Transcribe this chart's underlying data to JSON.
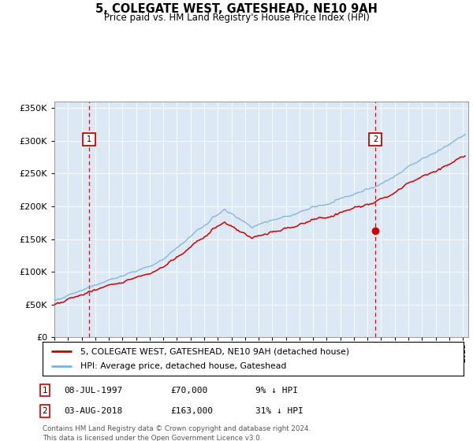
{
  "title": "5, COLEGATE WEST, GATESHEAD, NE10 9AH",
  "subtitle": "Price paid vs. HM Land Registry's House Price Index (HPI)",
  "bg_color": "#dce9f5",
  "line_color_hpi": "#7ab3d9",
  "line_color_price": "#cc0000",
  "legend_line1": "5, COLEGATE WEST, GATESHEAD, NE10 9AH (detached house)",
  "legend_line2": "HPI: Average price, detached house, Gateshead",
  "footer": "Contains HM Land Registry data © Crown copyright and database right 2024.\nThis data is licensed under the Open Government Licence v3.0.",
  "ylim": [
    0,
    360000
  ],
  "yticks": [
    0,
    50000,
    100000,
    150000,
    200000,
    250000,
    300000,
    350000
  ],
  "year1": 1997.52,
  "year2": 2018.59,
  "price1": 70000,
  "price2": 163000,
  "ann1_date": "08-JUL-1997",
  "ann1_price": "£70,000",
  "ann1_hpi": "9% ↓ HPI",
  "ann2_date": "03-AUG-2018",
  "ann2_price": "£163,000",
  "ann2_hpi": "31% ↓ HPI"
}
